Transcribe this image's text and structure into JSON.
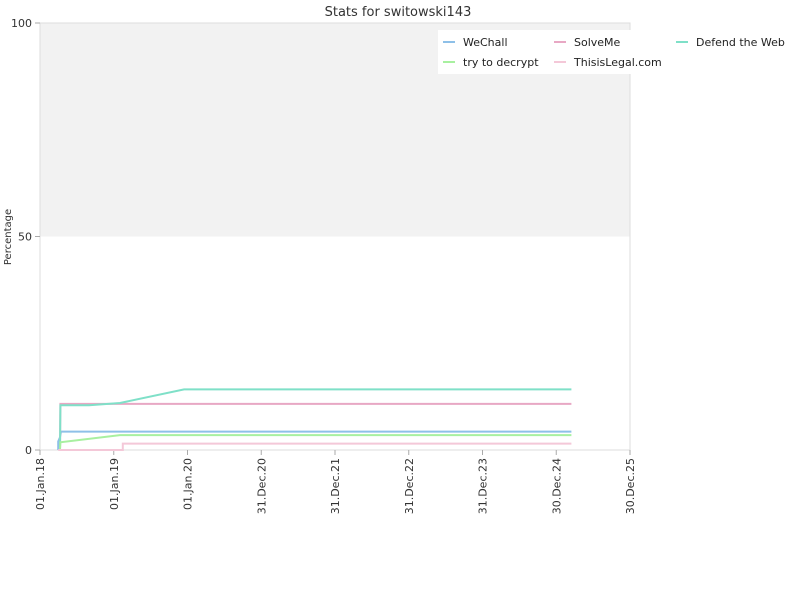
{
  "chart_data": {
    "type": "line",
    "title": "Stats for switowski143",
    "xlabel": "",
    "ylabel": "Percentage",
    "ylim": [
      0,
      100
    ],
    "xlim": [
      "2018-01-01",
      "2025-12-30"
    ],
    "y_ticks": [
      0,
      50,
      100
    ],
    "x_ticks": [
      {
        "date": "2018-01-01",
        "label": "01.Jan.18"
      },
      {
        "date": "2019-01-01",
        "label": "01.Jan.19"
      },
      {
        "date": "2020-01-01",
        "label": "01.Jan.20"
      },
      {
        "date": "2020-12-31",
        "label": "31.Dec.20"
      },
      {
        "date": "2021-12-31",
        "label": "31.Dec.21"
      },
      {
        "date": "2022-12-31",
        "label": "31.Dec.22"
      },
      {
        "date": "2023-12-31",
        "label": "31.Dec.23"
      },
      {
        "date": "2024-12-30",
        "label": "30.Dec.24"
      },
      {
        "date": "2025-12-30",
        "label": "30.Dec.25"
      }
    ],
    "background_bands": [
      {
        "from": 0,
        "to": 50,
        "color": "#ffffff"
      },
      {
        "from": 50,
        "to": 100,
        "color": "#f2f2f2"
      }
    ],
    "legend_position": "top-right",
    "grid": false,
    "series": [
      {
        "name": "WeChall",
        "color": "#8ec0e8",
        "points": [
          [
            "2018-04-01",
            0
          ],
          [
            "2018-04-01",
            2
          ],
          [
            "2018-04-10",
            3
          ],
          [
            "2018-04-15",
            4.3
          ],
          [
            "2025-03-15",
            4.3
          ]
        ]
      },
      {
        "name": "SolveMe",
        "color": "#e8a8c4",
        "points": [
          [
            "2018-04-10",
            0
          ],
          [
            "2018-04-12",
            10.8
          ],
          [
            "2025-03-15",
            10.8
          ]
        ]
      },
      {
        "name": "Defend the Web",
        "color": "#7fe0c8",
        "points": [
          [
            "2018-04-10",
            0
          ],
          [
            "2018-04-12",
            10.5
          ],
          [
            "2018-09-01",
            10.5
          ],
          [
            "2019-02-01",
            11
          ],
          [
            "2019-12-15",
            14.2
          ],
          [
            "2025-03-15",
            14.2
          ]
        ]
      },
      {
        "name": "try to decrypt",
        "color": "#a8f0a0",
        "points": [
          [
            "2018-04-10",
            0
          ],
          [
            "2018-04-12",
            1.8
          ],
          [
            "2019-02-01",
            3.5
          ],
          [
            "2025-03-15",
            3.5
          ]
        ]
      },
      {
        "name": "ThisisLegal.com",
        "color": "#f4c8d8",
        "points": [
          [
            "2018-04-01",
            0
          ],
          [
            "2019-02-15",
            0
          ],
          [
            "2019-02-15",
            1.5
          ],
          [
            "2025-03-15",
            1.5
          ]
        ]
      }
    ]
  }
}
